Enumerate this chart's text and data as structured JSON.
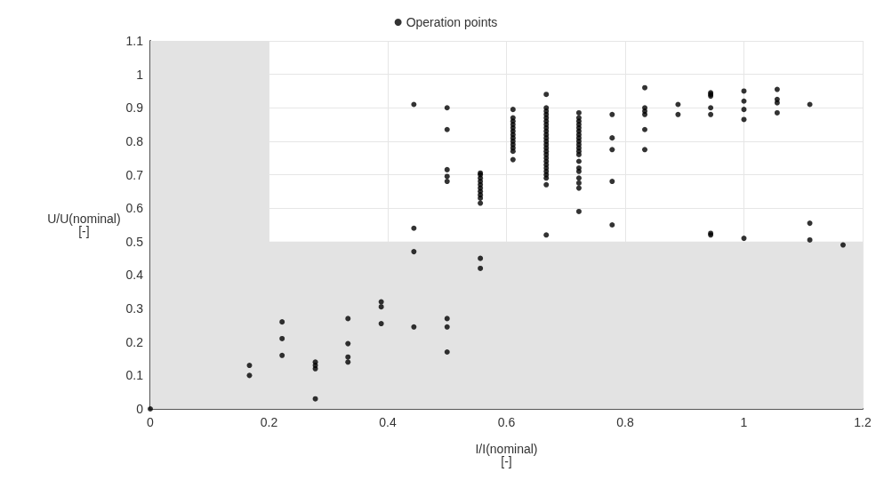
{
  "chart_data": {
    "type": "scatter",
    "xlabel": "I/I(nominal)\n[-]",
    "ylabel": "U/U(nominal)\n[-]",
    "xlim": [
      0,
      1.2
    ],
    "xticks": [
      0,
      0.2,
      0.4,
      0.6,
      0.8,
      1,
      1.2
    ],
    "ylim": [
      0,
      1.1
    ],
    "yticks": [
      0,
      0.1,
      0.2,
      0.3,
      0.4,
      0.5,
      0.6,
      0.7,
      0.8,
      0.9,
      1,
      1.1
    ],
    "grid": true,
    "legend": "top",
    "marker": "circle",
    "bands": [
      {
        "axis": "x",
        "from": 0,
        "to": 0.2,
        "color": "#e3e3e3"
      },
      {
        "axis": "y",
        "from": 0,
        "to": 0.5,
        "color": "#e3e3e3"
      }
    ],
    "series": [
      {
        "name": "Operation points",
        "color": "#000000",
        "x": [
          0,
          0.167,
          0.167,
          0.222,
          0.222,
          0.222,
          0.278,
          0.278,
          0.278,
          0.278,
          0.333,
          0.333,
          0.333,
          0.333,
          0.389,
          0.389,
          0.389,
          0.444,
          0.444,
          0.444,
          0.444,
          0.5,
          0.5,
          0.5,
          0.5,
          0.5,
          0.5,
          0.5,
          0.5,
          0.556,
          0.556,
          0.556,
          0.556,
          0.556,
          0.556,
          0.556,
          0.556,
          0.556,
          0.556,
          0.556,
          0.556,
          0.611,
          0.611,
          0.611,
          0.611,
          0.611,
          0.611,
          0.611,
          0.611,
          0.611,
          0.611,
          0.611,
          0.611,
          0.611,
          0.667,
          0.667,
          0.667,
          0.667,
          0.667,
          0.667,
          0.667,
          0.667,
          0.667,
          0.667,
          0.667,
          0.667,
          0.667,
          0.667,
          0.667,
          0.667,
          0.667,
          0.667,
          0.667,
          0.667,
          0.667,
          0.667,
          0.667,
          0.667,
          0.667,
          0.722,
          0.722,
          0.722,
          0.722,
          0.722,
          0.722,
          0.722,
          0.722,
          0.722,
          0.722,
          0.722,
          0.722,
          0.722,
          0.722,
          0.722,
          0.722,
          0.722,
          0.722,
          0.722,
          0.722,
          0.778,
          0.778,
          0.778,
          0.778,
          0.778,
          0.833,
          0.833,
          0.833,
          0.833,
          0.833,
          0.833,
          0.889,
          0.889,
          0.944,
          0.944,
          0.944,
          0.944,
          0.944,
          0.944,
          0.944,
          1,
          1,
          1,
          1,
          1,
          1.056,
          1.056,
          1.056,
          1.056,
          1.111,
          1.111,
          1.111,
          1.167
        ],
        "values": [
          0,
          0.13,
          0.1,
          0.26,
          0.21,
          0.16,
          0.14,
          0.13,
          0.12,
          0.03,
          0.27,
          0.195,
          0.155,
          0.14,
          0.32,
          0.305,
          0.255,
          0.91,
          0.54,
          0.47,
          0.245,
          0.9,
          0.835,
          0.715,
          0.695,
          0.68,
          0.27,
          0.245,
          0.17,
          0.705,
          0.7,
          0.69,
          0.68,
          0.67,
          0.66,
          0.65,
          0.64,
          0.63,
          0.615,
          0.45,
          0.42,
          0.895,
          0.87,
          0.86,
          0.85,
          0.84,
          0.83,
          0.82,
          0.81,
          0.8,
          0.79,
          0.78,
          0.77,
          0.745,
          0.94,
          0.9,
          0.89,
          0.88,
          0.87,
          0.86,
          0.85,
          0.84,
          0.83,
          0.82,
          0.81,
          0.8,
          0.79,
          0.78,
          0.77,
          0.76,
          0.75,
          0.74,
          0.73,
          0.72,
          0.71,
          0.7,
          0.69,
          0.67,
          0.52,
          0.885,
          0.87,
          0.86,
          0.85,
          0.84,
          0.83,
          0.82,
          0.81,
          0.8,
          0.79,
          0.78,
          0.77,
          0.76,
          0.74,
          0.72,
          0.71,
          0.69,
          0.675,
          0.66,
          0.59,
          0.88,
          0.81,
          0.775,
          0.68,
          0.55,
          0.96,
          0.9,
          0.89,
          0.88,
          0.835,
          0.775,
          0.91,
          0.88,
          0.945,
          0.94,
          0.935,
          0.9,
          0.88,
          0.525,
          0.52,
          0.95,
          0.92,
          0.895,
          0.865,
          0.51,
          0.955,
          0.925,
          0.915,
          0.885,
          0.91,
          0.555,
          0.505,
          0.49
        ]
      }
    ]
  }
}
